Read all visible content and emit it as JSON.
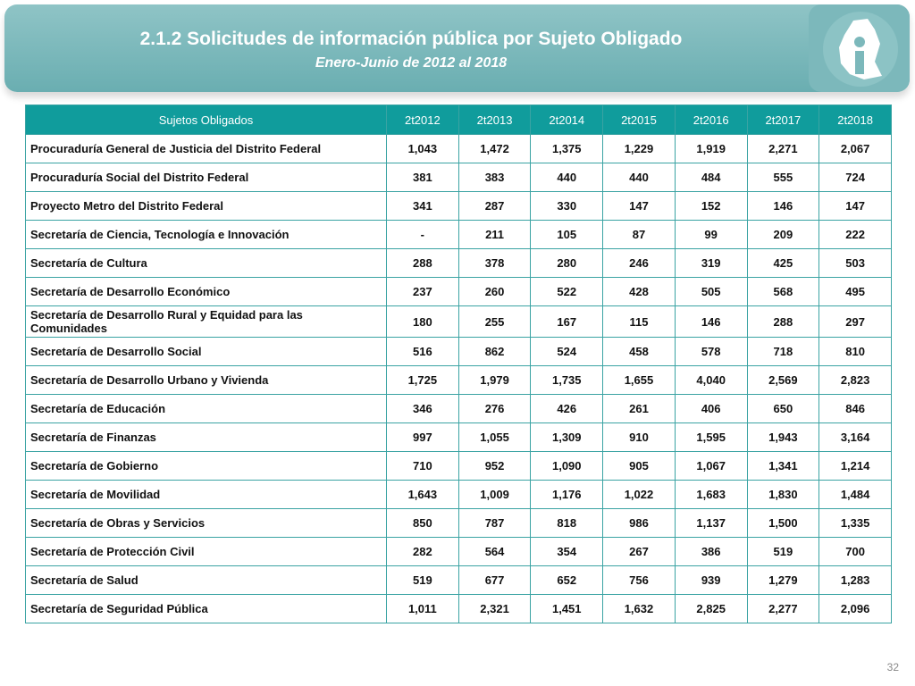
{
  "header": {
    "title": "2.1.2 Solicitudes de información pública por Sujeto Obligado",
    "subtitle": "Enero-Junio de 2012 al 2018"
  },
  "table": {
    "columns": [
      "Sujetos Obligados",
      "2t2012",
      "2t2013",
      "2t2014",
      "2t2015",
      "2t2016",
      "2t2017",
      "2t2018"
    ],
    "rows": [
      [
        "Procuraduría General de Justicia del Distrito Federal",
        "1,043",
        "1,472",
        "1,375",
        "1,229",
        "1,919",
        "2,271",
        "2,067"
      ],
      [
        "Procuraduría Social del Distrito Federal",
        "381",
        "383",
        "440",
        "440",
        "484",
        "555",
        "724"
      ],
      [
        "Proyecto Metro del Distrito Federal",
        "341",
        "287",
        "330",
        "147",
        "152",
        "146",
        "147"
      ],
      [
        "Secretaría de Ciencia, Tecnología e Innovación",
        "-",
        "211",
        "105",
        "87",
        "99",
        "209",
        "222"
      ],
      [
        "Secretaría de Cultura",
        "288",
        "378",
        "280",
        "246",
        "319",
        "425",
        "503"
      ],
      [
        "Secretaría de Desarrollo Económico",
        "237",
        "260",
        "522",
        "428",
        "505",
        "568",
        "495"
      ],
      [
        "Secretaría de Desarrollo Rural y Equidad para las Comunidades",
        "180",
        "255",
        "167",
        "115",
        "146",
        "288",
        "297"
      ],
      [
        "Secretaría de Desarrollo Social",
        "516",
        "862",
        "524",
        "458",
        "578",
        "718",
        "810"
      ],
      [
        "Secretaría de Desarrollo Urbano y Vivienda",
        "1,725",
        "1,979",
        "1,735",
        "1,655",
        "4,040",
        "2,569",
        "2,823"
      ],
      [
        "Secretaría de Educación",
        "346",
        "276",
        "426",
        "261",
        "406",
        "650",
        "846"
      ],
      [
        "Secretaría de Finanzas",
        "997",
        "1,055",
        "1,309",
        "910",
        "1,595",
        "1,943",
        "3,164"
      ],
      [
        "Secretaría de Gobierno",
        "710",
        "952",
        "1,090",
        "905",
        "1,067",
        "1,341",
        "1,214"
      ],
      [
        "Secretaría de Movilidad",
        "1,643",
        "1,009",
        "1,176",
        "1,022",
        "1,683",
        "1,830",
        "1,484"
      ],
      [
        "Secretaría de Obras y Servicios",
        "850",
        "787",
        "818",
        "986",
        "1,137",
        "1,500",
        "1,335"
      ],
      [
        "Secretaría de Protección Civil",
        "282",
        "564",
        "354",
        "267",
        "386",
        "519",
        "700"
      ],
      [
        "Secretaría de Salud",
        "519",
        "677",
        "652",
        "756",
        "939",
        "1,279",
        "1,283"
      ],
      [
        "Secretaría de Seguridad Pública",
        "1,011",
        "2,321",
        "1,451",
        "1,632",
        "2,825",
        "2,277",
        "2,096"
      ]
    ]
  },
  "page_number": "32"
}
